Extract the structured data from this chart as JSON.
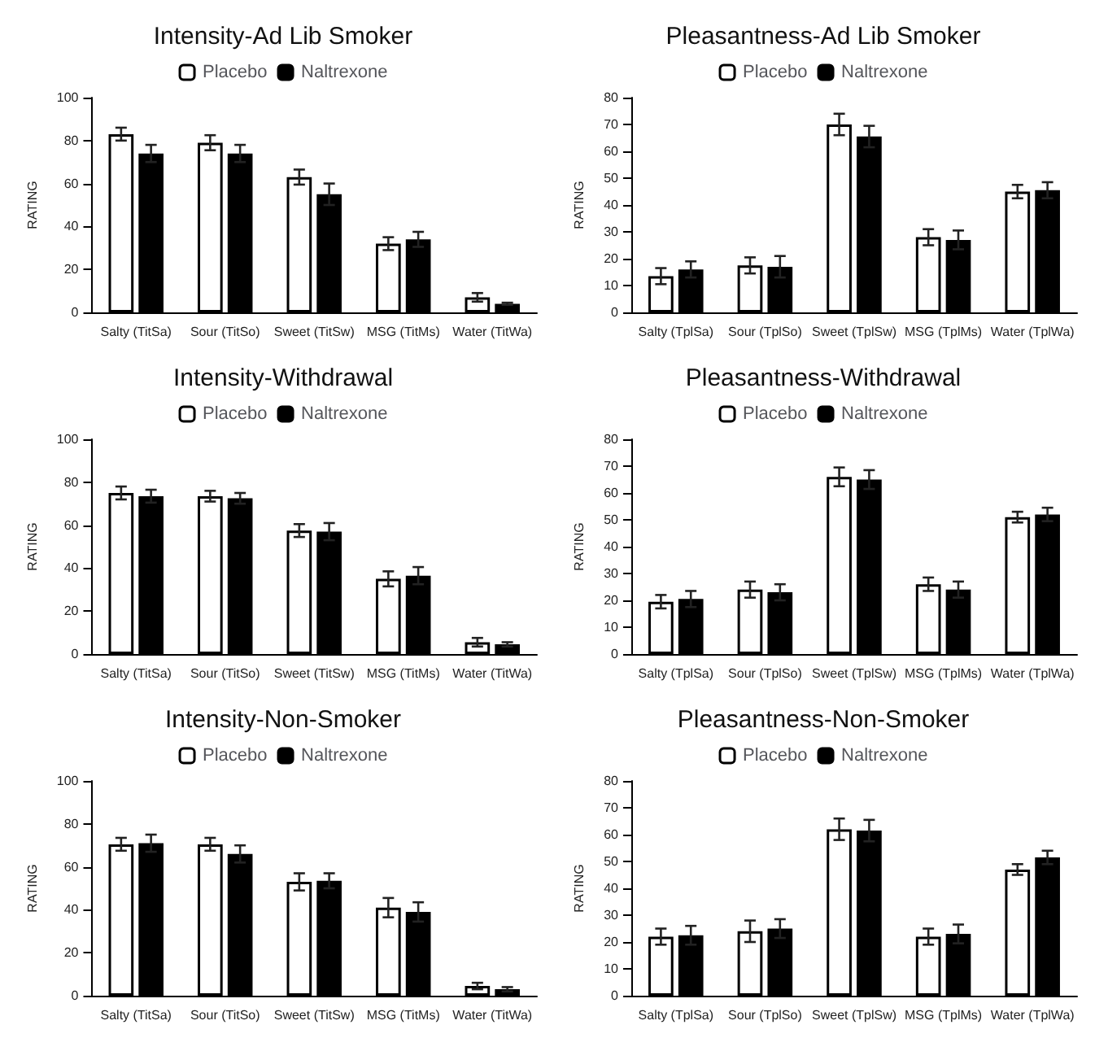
{
  "chart_data": [
    {
      "type": "bar",
      "title": "Intensity-Ad Lib Smoker",
      "ylabel": "RATING",
      "categories": [
        "Salty (TitSa)",
        "Sour (TitSo)",
        "Sweet (TitSw)",
        "MSG (TitMs)",
        "Water (TitWa)"
      ],
      "series": [
        {
          "name": "Placebo",
          "color": "#ffffff",
          "values": [
            83,
            79,
            63,
            32,
            7
          ],
          "errors": [
            3,
            3.5,
            3.5,
            3,
            2
          ]
        },
        {
          "name": "Naltrexone",
          "color": "#000000",
          "values": [
            74,
            74,
            55,
            34,
            4
          ],
          "errors": [
            4,
            4,
            5,
            3.5,
            0.5
          ]
        }
      ],
      "ylim": [
        0,
        100
      ],
      "yticks": [
        0,
        20,
        40,
        60,
        80,
        100
      ],
      "grid": false,
      "legend": "top"
    },
    {
      "type": "bar",
      "title": "Pleasantness-Ad Lib Smoker",
      "ylabel": "RATING",
      "categories": [
        "Salty (TplSa)",
        "Sour (TplSo)",
        "Sweet (TplSw)",
        "MSG (TplMs)",
        "Water (TplWa)"
      ],
      "series": [
        {
          "name": "Placebo",
          "color": "#ffffff",
          "values": [
            13.5,
            17.5,
            70,
            28,
            45
          ],
          "errors": [
            3,
            3,
            4,
            3,
            2.5
          ]
        },
        {
          "name": "Naltrexone",
          "color": "#000000",
          "values": [
            16,
            17,
            65.5,
            27,
            45.5
          ],
          "errors": [
            3,
            4,
            4,
            3.5,
            3
          ]
        }
      ],
      "ylim": [
        0,
        80
      ],
      "yticks": [
        0,
        10,
        20,
        30,
        40,
        50,
        60,
        70,
        80
      ],
      "grid": false,
      "legend": "top"
    },
    {
      "type": "bar",
      "title": "Intensity-Withdrawal",
      "ylabel": "RATING",
      "categories": [
        "Salty (TitSa)",
        "Sour (TitSo)",
        "Sweet (TitSw)",
        "MSG (TitMs)",
        "Water (TitWa)"
      ],
      "series": [
        {
          "name": "Placebo",
          "color": "#ffffff",
          "values": [
            75,
            73.5,
            57.5,
            35,
            5.5
          ],
          "errors": [
            3,
            2.5,
            3,
            3.5,
            2
          ]
        },
        {
          "name": "Naltrexone",
          "color": "#000000",
          "values": [
            73.5,
            72.5,
            57,
            36.5,
            4.5
          ],
          "errors": [
            3,
            2.5,
            4,
            4,
            1
          ]
        }
      ],
      "ylim": [
        0,
        100
      ],
      "yticks": [
        0,
        20,
        40,
        60,
        80,
        100
      ],
      "grid": false,
      "legend": "top"
    },
    {
      "type": "bar",
      "title": "Pleasantness-Withdrawal",
      "ylabel": "RATING",
      "categories": [
        "Salty (TplSa)",
        "Sour (TplSo)",
        "Sweet (TplSw)",
        "MSG (TplMs)",
        "Water (TplWa)"
      ],
      "series": [
        {
          "name": "Placebo",
          "color": "#ffffff",
          "values": [
            19.5,
            24,
            66,
            26,
            51
          ],
          "errors": [
            2.5,
            3,
            3.5,
            2.5,
            2
          ]
        },
        {
          "name": "Naltrexone",
          "color": "#000000",
          "values": [
            20.5,
            23,
            65,
            24,
            52
          ],
          "errors": [
            3,
            3,
            3.5,
            3,
            2.5
          ]
        }
      ],
      "ylim": [
        0,
        80
      ],
      "yticks": [
        0,
        10,
        20,
        30,
        40,
        50,
        60,
        70,
        80
      ],
      "grid": false,
      "legend": "top"
    },
    {
      "type": "bar",
      "title": "Intensity-Non-Smoker",
      "ylabel": "RATING",
      "categories": [
        "Salty (TitSa)",
        "Sour (TitSo)",
        "Sweet (TitSw)",
        "MSG (TitMs)",
        "Water (TitWa)"
      ],
      "series": [
        {
          "name": "Placebo",
          "color": "#ffffff",
          "values": [
            70.5,
            70.5,
            53,
            41,
            4.5
          ],
          "errors": [
            3,
            3,
            4,
            4.5,
            1.5
          ]
        },
        {
          "name": "Naltrexone",
          "color": "#000000",
          "values": [
            71,
            66,
            53.5,
            39,
            3
          ],
          "errors": [
            4,
            4,
            3.5,
            4.5,
            1
          ]
        }
      ],
      "ylim": [
        0,
        100
      ],
      "yticks": [
        0,
        20,
        40,
        60,
        80,
        100
      ],
      "grid": false,
      "legend": "top"
    },
    {
      "type": "bar",
      "title": "Pleasantness-Non-Smoker",
      "ylabel": "RATING",
      "categories": [
        "Salty (TplSa)",
        "Sour (TplSo)",
        "Sweet (TplSw)",
        "MSG (TplMs)",
        "Water (TplWa)"
      ],
      "series": [
        {
          "name": "Placebo",
          "color": "#ffffff",
          "values": [
            22,
            24,
            62,
            22,
            47
          ],
          "errors": [
            3,
            4,
            4,
            3,
            2
          ]
        },
        {
          "name": "Naltrexone",
          "color": "#000000",
          "values": [
            22.5,
            25,
            61.5,
            23,
            51.5
          ],
          "errors": [
            3.5,
            3.5,
            4,
            3.5,
            2.5
          ]
        }
      ],
      "ylim": [
        0,
        80
      ],
      "yticks": [
        0,
        10,
        20,
        30,
        40,
        50,
        60,
        70,
        80
      ],
      "grid": false,
      "legend": "top"
    }
  ]
}
